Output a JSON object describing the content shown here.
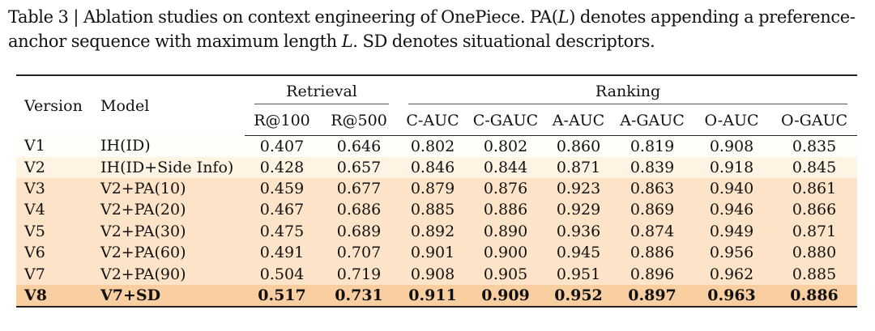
{
  "caption": {
    "part1": "Table 3 | Ablation studies on context engineering of OnePiece. PA(",
    "var1": "L",
    "part2": ") denotes appending a preference-anchor sequence with maximum length ",
    "var2": "L",
    "part3": ". SD denotes situational descriptors."
  },
  "table": {
    "header": {
      "version": "Version",
      "model": "Model",
      "retrieval": "Retrieval",
      "ranking": "Ranking",
      "metrics": [
        "R@100",
        "R@500",
        "C-AUC",
        "C-GAUC",
        "A-AUC",
        "A-GAUC",
        "O-AUC",
        "O-GAUC"
      ]
    },
    "rows": [
      {
        "version": "V1",
        "model": "IH(ID)",
        "values": [
          "0.407",
          "0.646",
          "0.802",
          "0.802",
          "0.860",
          "0.819",
          "0.908",
          "0.835"
        ]
      },
      {
        "version": "V2",
        "model": "IH(ID+Side Info)",
        "values": [
          "0.428",
          "0.657",
          "0.846",
          "0.844",
          "0.871",
          "0.839",
          "0.918",
          "0.845"
        ]
      },
      {
        "version": "V3",
        "model": "V2+PA(10)",
        "values": [
          "0.459",
          "0.677",
          "0.879",
          "0.876",
          "0.923",
          "0.863",
          "0.940",
          "0.861"
        ]
      },
      {
        "version": "V4",
        "model": "V2+PA(20)",
        "values": [
          "0.467",
          "0.686",
          "0.885",
          "0.886",
          "0.929",
          "0.869",
          "0.946",
          "0.866"
        ]
      },
      {
        "version": "V5",
        "model": "V2+PA(30)",
        "values": [
          "0.475",
          "0.689",
          "0.892",
          "0.890",
          "0.936",
          "0.874",
          "0.949",
          "0.871"
        ]
      },
      {
        "version": "V6",
        "model": "V2+PA(60)",
        "values": [
          "0.491",
          "0.707",
          "0.901",
          "0.900",
          "0.945",
          "0.886",
          "0.956",
          "0.880"
        ]
      },
      {
        "version": "V7",
        "model": "V2+PA(90)",
        "values": [
          "0.504",
          "0.719",
          "0.908",
          "0.905",
          "0.951",
          "0.896",
          "0.962",
          "0.885"
        ]
      },
      {
        "version": "V8",
        "model": "V7+SD",
        "values": [
          "0.517",
          "0.731",
          "0.911",
          "0.909",
          "0.952",
          "0.897",
          "0.963",
          "0.886"
        ]
      }
    ]
  },
  "colors": {
    "row_bg_lightest": "#fffdf9",
    "row_bg_light": "#fff3e3",
    "row_bg_medium": "#fde4c8",
    "row_bg_highlight": "#f9cfa1",
    "rule": "#222222"
  }
}
